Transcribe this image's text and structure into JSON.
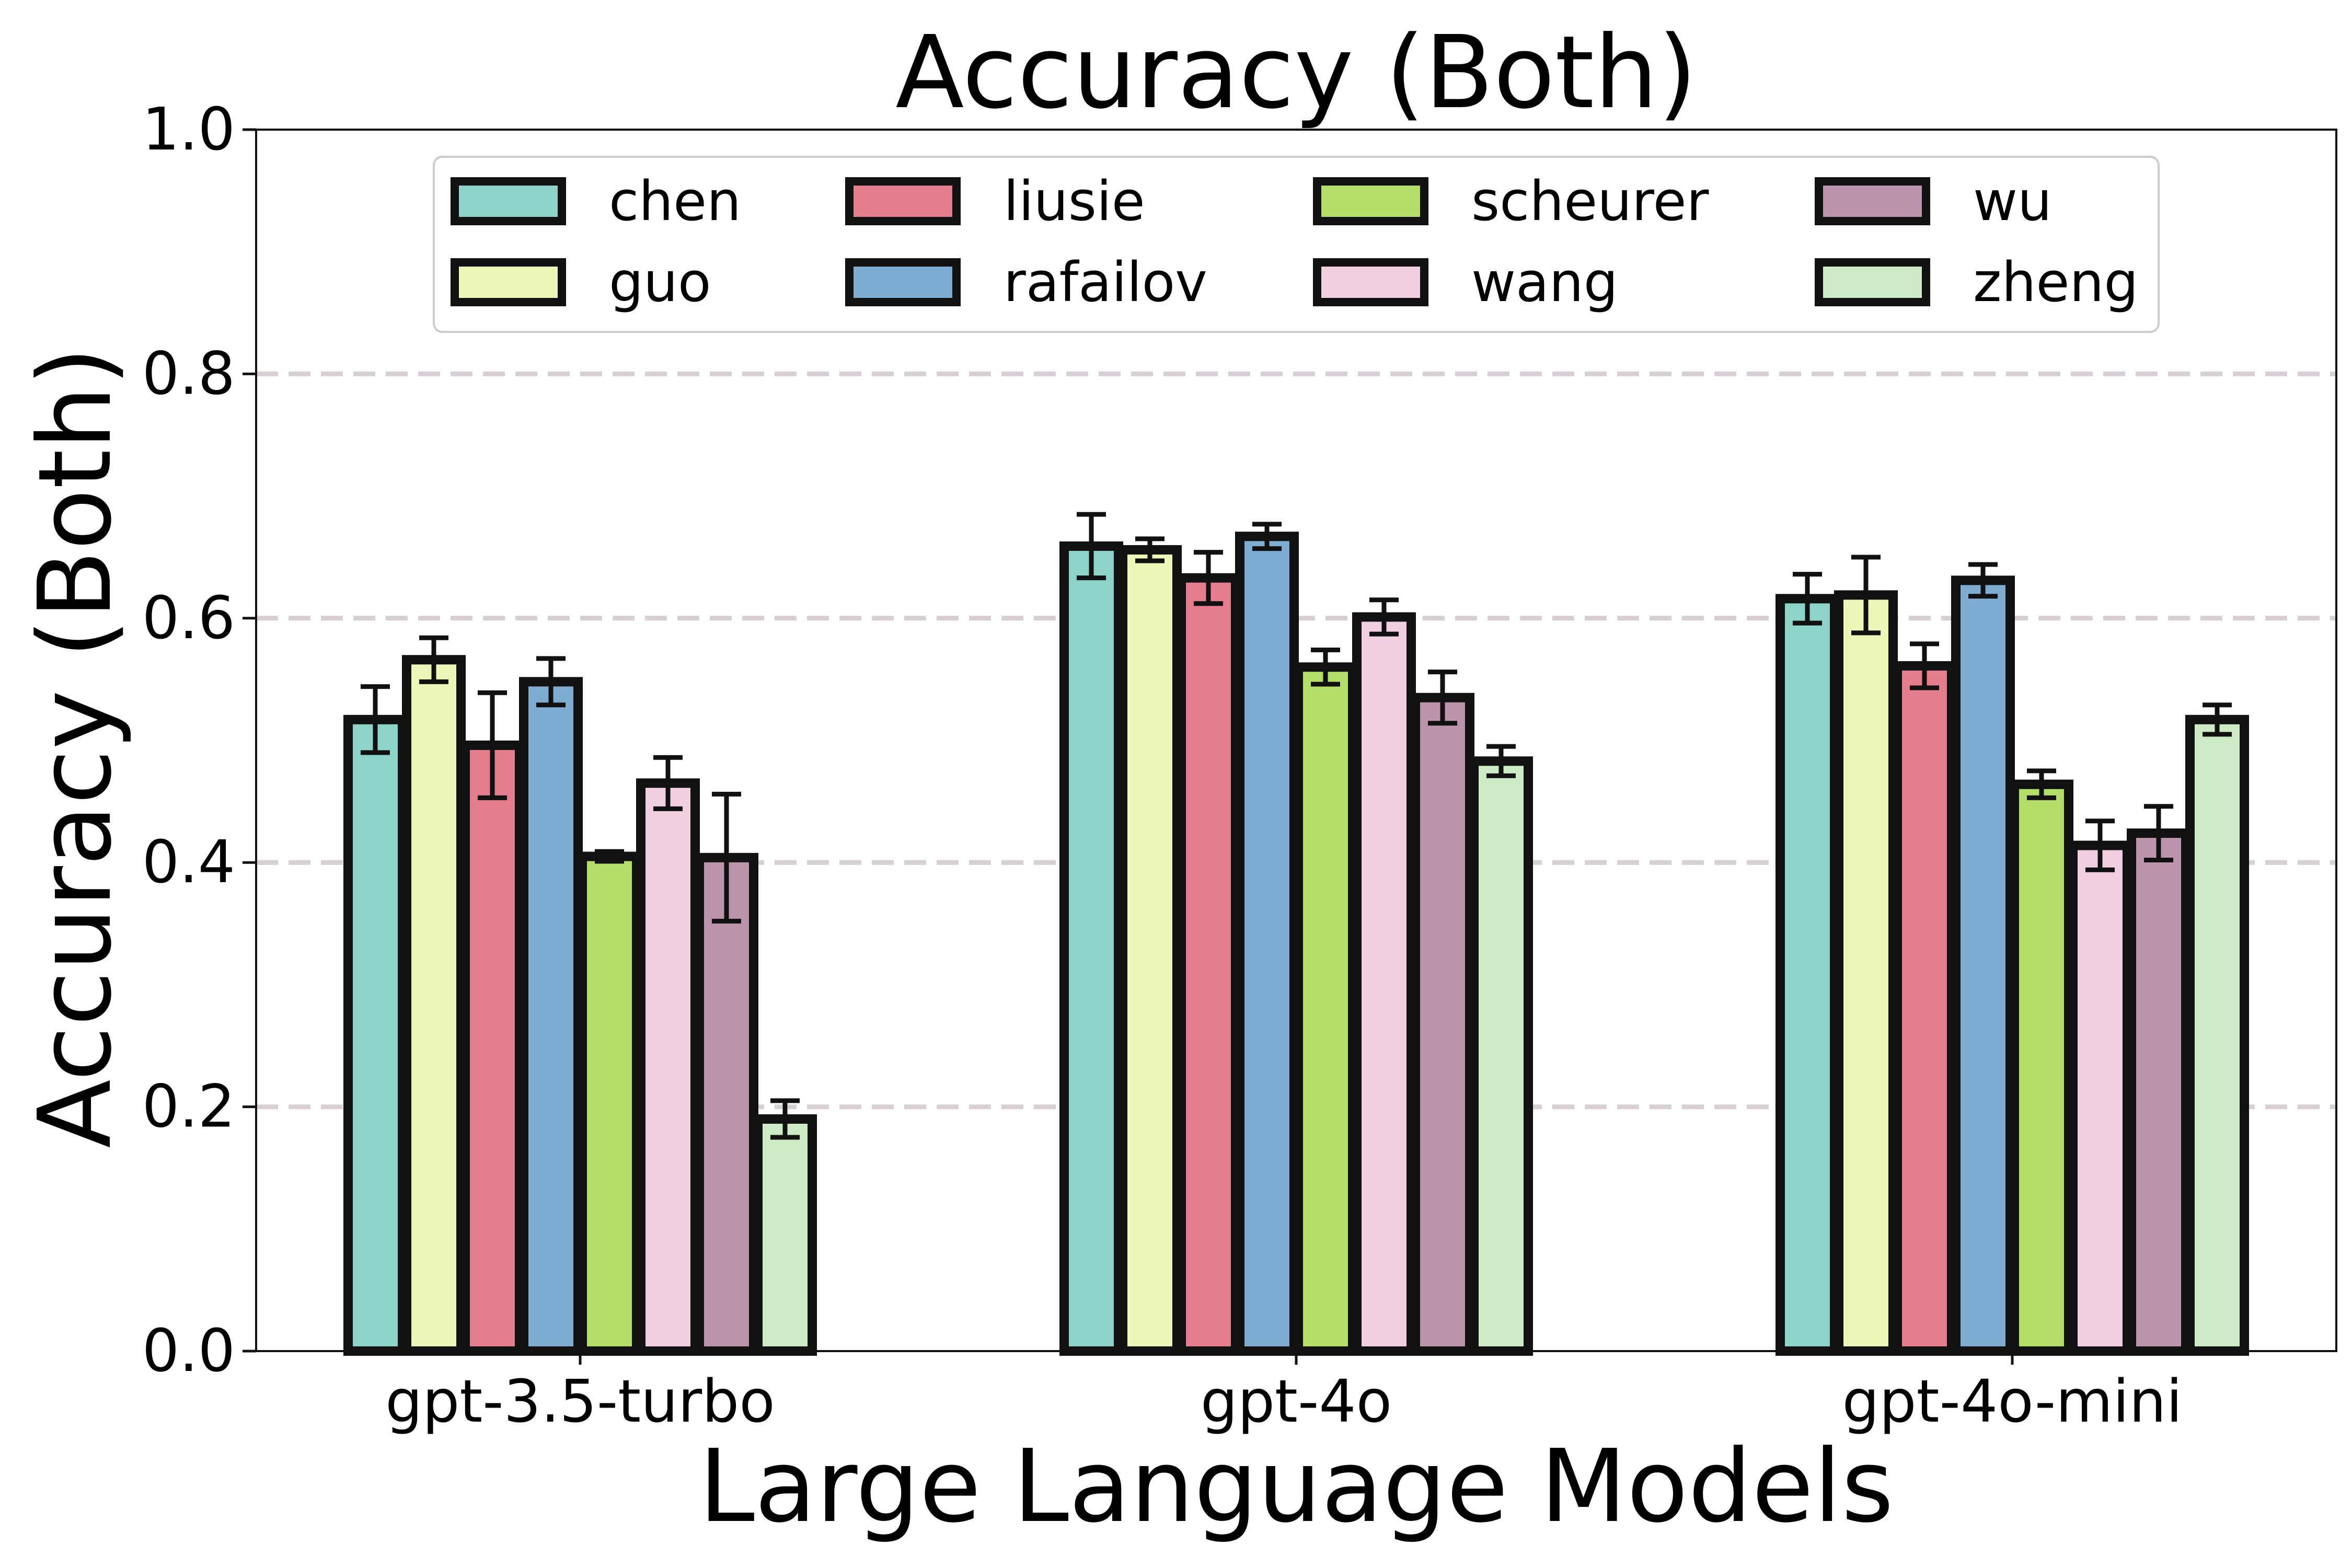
{
  "chart_data": {
    "type": "bar",
    "title": "Accuracy (Both)",
    "xlabel": "Large Language Models",
    "ylabel": "Accuracy (Both)",
    "ylim": [
      0,
      1.0
    ],
    "yticks": [
      "0.0",
      "0.2",
      "0.4",
      "0.6",
      "0.8",
      "1.0"
    ],
    "grid": true,
    "legend_position": "top",
    "categories": [
      "gpt-3.5-turbo",
      "gpt-4o",
      "gpt-4o-mini"
    ],
    "series": [
      {
        "name": "chen",
        "color": "#8dd3c7",
        "values": [
          0.517,
          0.659,
          0.616
        ],
        "errors": [
          0.027,
          0.026,
          0.02
        ]
      },
      {
        "name": "guo",
        "color": "#ecf8b8",
        "values": [
          0.566,
          0.656,
          0.619
        ],
        "errors": [
          0.018,
          0.009,
          0.031
        ]
      },
      {
        "name": "liusie",
        "color": "#e47d8c",
        "values": [
          0.496,
          0.633,
          0.561
        ],
        "errors": [
          0.043,
          0.021,
          0.018
        ]
      },
      {
        "name": "rafailov",
        "color": "#7fadd1",
        "values": [
          0.548,
          0.667,
          0.631
        ],
        "errors": [
          0.019,
          0.01,
          0.013
        ]
      },
      {
        "name": "scheurer",
        "color": "#b3de69",
        "values": [
          0.405,
          0.56,
          0.464
        ],
        "errors": [
          0.004,
          0.014,
          0.011
        ]
      },
      {
        "name": "wang",
        "color": "#f2cfe0",
        "values": [
          0.465,
          0.601,
          0.414
        ],
        "errors": [
          0.021,
          0.014,
          0.02
        ]
      },
      {
        "name": "wu",
        "color": "#bc94ab",
        "values": [
          0.404,
          0.535,
          0.424
        ],
        "errors": [
          0.052,
          0.021,
          0.022
        ]
      },
      {
        "name": "zheng",
        "color": "#ccebc5",
        "values": [
          0.19,
          0.483,
          0.517
        ],
        "errors": [
          0.015,
          0.012,
          0.012
        ]
      }
    ]
  }
}
